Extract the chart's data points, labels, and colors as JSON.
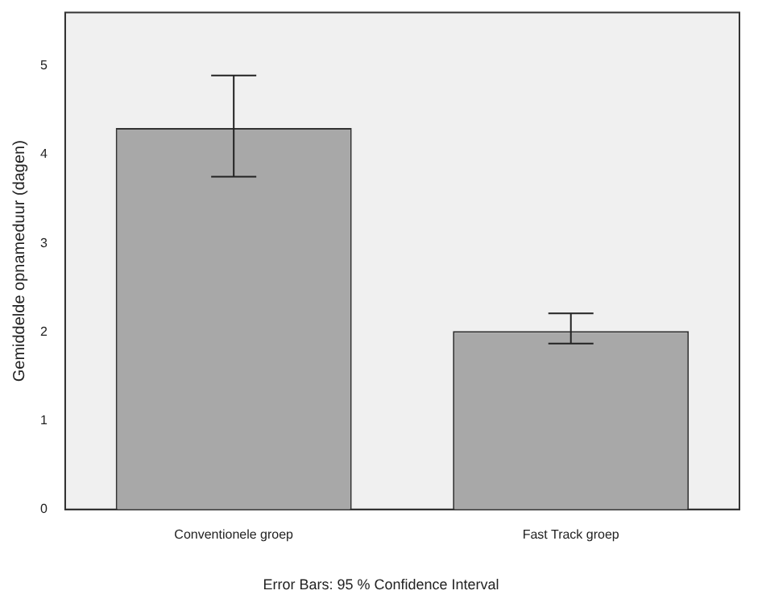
{
  "chart_data": {
    "type": "bar",
    "ylabel": "Gemiddelde opnameduur (dagen)",
    "categories": [
      "Conventionele groep",
      "Fast Track groep"
    ],
    "values": [
      4.3,
      2.01
    ],
    "color": "#a8a8a8",
    "errors": [
      [
        3.75,
        4.89
      ],
      [
        1.87,
        2.21
      ]
    ],
    "ylim": [
      0,
      5.6
    ],
    "yticks": [
      0,
      1,
      2,
      3,
      4,
      5
    ],
    "grid": false,
    "legend": false,
    "annotations": [
      "Error Bars: 95 % Confidence Interval"
    ]
  }
}
